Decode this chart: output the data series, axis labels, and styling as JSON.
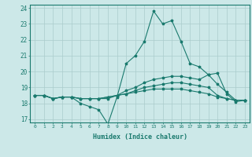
{
  "xlabel": "Humidex (Indice chaleur)",
  "bg_color": "#cce8e8",
  "grid_color": "#aacccc",
  "line_color": "#1a7a6e",
  "xlim": [
    -0.5,
    23.5
  ],
  "ylim": [
    16.8,
    24.2
  ],
  "yticks": [
    17,
    18,
    19,
    20,
    21,
    22,
    23,
    24
  ],
  "xticks": [
    0,
    1,
    2,
    3,
    4,
    5,
    6,
    7,
    8,
    9,
    10,
    11,
    12,
    13,
    14,
    15,
    16,
    17,
    18,
    19,
    20,
    21,
    22,
    23
  ],
  "lines": [
    {
      "x": [
        0,
        1,
        2,
        3,
        4,
        5,
        6,
        7,
        8,
        9,
        10,
        11,
        12,
        13,
        14,
        15,
        16,
        17,
        18,
        19,
        20,
        21,
        22,
        23
      ],
      "y": [
        18.5,
        18.5,
        18.3,
        18.4,
        18.4,
        18.0,
        17.8,
        17.6,
        16.7,
        18.4,
        20.5,
        21.0,
        21.9,
        23.8,
        23.0,
        23.2,
        21.9,
        20.5,
        20.3,
        19.8,
        19.9,
        18.6,
        18.1,
        18.2
      ]
    },
    {
      "x": [
        0,
        1,
        2,
        3,
        4,
        5,
        6,
        7,
        8,
        9,
        10,
        11,
        12,
        13,
        14,
        15,
        16,
        17,
        18,
        19,
        20,
        21,
        22,
        23
      ],
      "y": [
        18.5,
        18.5,
        18.3,
        18.4,
        18.4,
        18.3,
        18.3,
        18.3,
        18.3,
        18.5,
        18.8,
        19.0,
        19.3,
        19.5,
        19.6,
        19.7,
        19.7,
        19.6,
        19.5,
        19.8,
        19.2,
        18.7,
        18.2,
        18.2
      ]
    },
    {
      "x": [
        0,
        1,
        2,
        3,
        4,
        5,
        6,
        7,
        8,
        9,
        10,
        11,
        12,
        13,
        14,
        15,
        16,
        17,
        18,
        19,
        20,
        21,
        22,
        23
      ],
      "y": [
        18.5,
        18.5,
        18.3,
        18.4,
        18.4,
        18.3,
        18.3,
        18.3,
        18.4,
        18.5,
        18.6,
        18.8,
        19.0,
        19.1,
        19.2,
        19.3,
        19.3,
        19.2,
        19.1,
        19.0,
        18.5,
        18.3,
        18.2,
        18.2
      ]
    },
    {
      "x": [
        0,
        1,
        2,
        3,
        4,
        5,
        6,
        7,
        8,
        9,
        10,
        11,
        12,
        13,
        14,
        15,
        16,
        17,
        18,
        19,
        20,
        21,
        22,
        23
      ],
      "y": [
        18.5,
        18.5,
        18.3,
        18.4,
        18.4,
        18.3,
        18.3,
        18.3,
        18.4,
        18.5,
        18.6,
        18.7,
        18.8,
        18.9,
        18.9,
        18.9,
        18.9,
        18.8,
        18.7,
        18.6,
        18.4,
        18.3,
        18.2,
        18.2
      ]
    }
  ]
}
